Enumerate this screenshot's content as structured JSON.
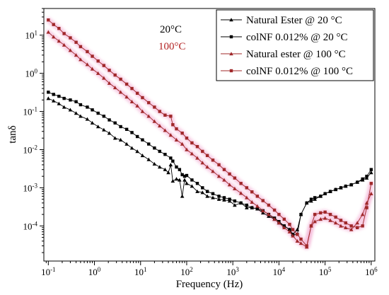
{
  "chart_data": {
    "type": "line",
    "xlabel": "Frequency (Hz)",
    "ylabel": "tanδ",
    "x_scale": "log",
    "y_scale": "log",
    "xlim": [
      0.08,
      1200000
    ],
    "ylim": [
      1.2e-05,
      50
    ],
    "x_ticks": [
      {
        "value": 0.1,
        "base": "10",
        "exp": "-1"
      },
      {
        "value": 1,
        "base": "10",
        "exp": "0"
      },
      {
        "value": 10,
        "base": "10",
        "exp": "1"
      },
      {
        "value": 100,
        "base": "10",
        "exp": "2"
      },
      {
        "value": 1000,
        "base": "10",
        "exp": "3"
      },
      {
        "value": 10000,
        "base": "10",
        "exp": "4"
      },
      {
        "value": 100000,
        "base": "10",
        "exp": "5"
      },
      {
        "value": 1000000,
        "base": "10",
        "exp": "6"
      }
    ],
    "y_ticks": [
      {
        "value": 0.0001,
        "base": "10",
        "exp": "-4"
      },
      {
        "value": 0.001,
        "base": "10",
        "exp": "-3"
      },
      {
        "value": 0.01,
        "base": "10",
        "exp": "-2"
      },
      {
        "value": 0.1,
        "base": "10",
        "exp": "-1"
      },
      {
        "value": 1,
        "base": "10",
        "exp": "0"
      },
      {
        "value": 10,
        "base": "10",
        "exp": "1"
      }
    ],
    "annotations": [
      {
        "text": "20°C",
        "color": "#000000"
      },
      {
        "text": "100°C",
        "color": "#b22222"
      }
    ],
    "legend_position": "top-right",
    "grid": false,
    "series": [
      {
        "name": "Natural Ester @ 20 °C",
        "color": "#000000",
        "marker": "triangle",
        "x": [
          0.1,
          0.13,
          0.17,
          0.22,
          0.3,
          0.4,
          0.5,
          0.7,
          0.9,
          1.2,
          1.6,
          2.1,
          2.8,
          3.7,
          5,
          6.5,
          8.5,
          11,
          15,
          20,
          26,
          34,
          40,
          45,
          50,
          60,
          70,
          80,
          90,
          100,
          130,
          170,
          220,
          280,
          370,
          500,
          650,
          850,
          1100,
          1500,
          2000,
          2600,
          3400,
          4500,
          6000,
          8000,
          10000,
          13000,
          17000,
          20000,
          25000,
          30000,
          40000,
          50000,
          60000,
          80000,
          100000,
          130000,
          170000,
          220000,
          280000,
          370000,
          500000,
          650000,
          800000,
          1000000
        ],
        "y": [
          0.22,
          0.19,
          0.16,
          0.13,
          0.11,
          0.09,
          0.075,
          0.063,
          0.05,
          0.04,
          0.033,
          0.027,
          0.02,
          0.018,
          0.014,
          0.011,
          0.009,
          0.007,
          0.0055,
          0.0042,
          0.0035,
          0.003,
          0.0025,
          0.004,
          0.0015,
          0.0017,
          0.0016,
          0.0006,
          0.0016,
          0.0013,
          0.0011,
          0.0008,
          0.00075,
          0.0006,
          0.00055,
          0.0005,
          0.00048,
          0.00045,
          0.00035,
          0.0004,
          0.0003,
          0.0003,
          0.00028,
          0.00022,
          0.00018,
          0.00015,
          0.00012,
          0.0001,
          8e-05,
          6e-05,
          8e-05,
          0.0002,
          0.0004,
          0.00045,
          0.0005,
          0.0006,
          0.0007,
          0.0008,
          0.0009,
          0.001,
          0.0011,
          0.0012,
          0.0014,
          0.0016,
          0.0018,
          0.0025
        ]
      },
      {
        "name": "colNF 0.012% @ 20 °C",
        "color": "#000000",
        "marker": "square",
        "x": [
          0.1,
          0.13,
          0.17,
          0.22,
          0.3,
          0.4,
          0.5,
          0.7,
          0.9,
          1.2,
          1.6,
          2.1,
          2.8,
          3.7,
          5,
          6.5,
          8.5,
          11,
          15,
          20,
          26,
          34,
          45,
          50,
          60,
          70,
          80,
          90,
          100,
          130,
          170,
          220,
          280,
          370,
          500,
          650,
          850,
          1100,
          1500,
          2000,
          2600,
          3400,
          4500,
          6000,
          8000,
          10000,
          13000,
          17000,
          20000,
          25000,
          30000,
          40000,
          50000,
          60000,
          80000,
          100000,
          130000,
          170000,
          220000,
          280000,
          370000,
          500000,
          650000,
          800000,
          1000000
        ],
        "y": [
          0.32,
          0.28,
          0.25,
          0.22,
          0.2,
          0.18,
          0.15,
          0.13,
          0.11,
          0.09,
          0.075,
          0.06,
          0.05,
          0.04,
          0.034,
          0.028,
          0.022,
          0.018,
          0.014,
          0.011,
          0.009,
          0.0075,
          0.006,
          0.005,
          0.0035,
          0.003,
          0.0022,
          0.002,
          0.0021,
          0.0016,
          0.0013,
          0.001,
          0.0008,
          0.0007,
          0.0006,
          0.00055,
          0.0005,
          0.00045,
          0.0004,
          0.00035,
          0.0003,
          0.00028,
          0.00025,
          0.0002,
          0.00016,
          0.00013,
          0.0001,
          8e-05,
          6e-05,
          6e-05,
          0.0002,
          0.0004,
          0.0005,
          0.00055,
          0.0006,
          0.0007,
          0.0008,
          0.0009,
          0.001,
          0.0011,
          0.0012,
          0.0014,
          0.0017,
          0.002,
          0.003
        ]
      },
      {
        "name": "Natural ester @ 100 °C",
        "color": "#a0282a",
        "marker": "triangle",
        "x": [
          0.1,
          0.13,
          0.17,
          0.22,
          0.3,
          0.4,
          0.5,
          0.7,
          0.9,
          1.2,
          1.6,
          2.1,
          2.8,
          3.7,
          5,
          6.5,
          8.5,
          11,
          15,
          20,
          26,
          34,
          45,
          60,
          80,
          100,
          130,
          170,
          220,
          280,
          370,
          500,
          650,
          850,
          1100,
          1500,
          2000,
          2600,
          3400,
          4500,
          6000,
          8000,
          10000,
          13000,
          17000,
          20000,
          25000,
          30000,
          40000,
          50000,
          60000,
          80000,
          100000,
          130000,
          170000,
          220000,
          280000,
          370000,
          500000,
          650000,
          800000,
          1000000
        ],
        "y": [
          12,
          9,
          7,
          5.5,
          4,
          3,
          2.3,
          1.7,
          1.3,
          1,
          0.75,
          0.55,
          0.42,
          0.32,
          0.24,
          0.18,
          0.14,
          0.1,
          0.075,
          0.055,
          0.042,
          0.032,
          0.024,
          0.018,
          0.014,
          0.01,
          0.0078,
          0.006,
          0.0045,
          0.0035,
          0.0027,
          0.002,
          0.0016,
          0.0012,
          0.00095,
          0.00072,
          0.00055,
          0.00042,
          0.00033,
          0.00025,
          0.0002,
          0.00015,
          0.00012,
          9e-05,
          7e-05,
          5.5e-05,
          4e-05,
          3.5e-05,
          2.8e-05,
          0.0001,
          0.00013,
          0.00015,
          0.00016,
          0.00014,
          0.00012,
          0.0001,
          9e-05,
          8e-05,
          0.00012,
          0.0002,
          0.0004,
          0.0007
        ]
      },
      {
        "name": "colNF 0.012% @ 100 °C",
        "color": "#a0282a",
        "marker": "square",
        "x": [
          0.1,
          0.13,
          0.17,
          0.22,
          0.3,
          0.4,
          0.5,
          0.7,
          0.9,
          1.2,
          1.6,
          2.1,
          2.8,
          3.7,
          5,
          6.5,
          8.5,
          11,
          15,
          20,
          26,
          34,
          45,
          50,
          60,
          80,
          100,
          130,
          170,
          220,
          280,
          370,
          500,
          650,
          850,
          1100,
          1500,
          2000,
          2600,
          3400,
          4500,
          6000,
          8000,
          10000,
          13000,
          17000,
          20000,
          25000,
          30000,
          40000,
          50000,
          60000,
          80000,
          100000,
          130000,
          170000,
          220000,
          280000,
          370000,
          500000,
          650000,
          800000,
          1000000
        ],
        "y": [
          25,
          19,
          15,
          11,
          8.5,
          6.5,
          5,
          3.7,
          2.8,
          2.1,
          1.6,
          1.2,
          0.9,
          0.7,
          0.52,
          0.4,
          0.3,
          0.23,
          0.17,
          0.13,
          0.1,
          0.08,
          0.075,
          0.045,
          0.035,
          0.027,
          0.02,
          0.015,
          0.012,
          0.009,
          0.007,
          0.0053,
          0.004,
          0.003,
          0.0023,
          0.0018,
          0.0013,
          0.001,
          0.00078,
          0.0006,
          0.00046,
          0.00035,
          0.00026,
          0.0002,
          0.00015,
          0.00011,
          8e-05,
          6e-05,
          4.5e-05,
          3e-05,
          0.0001,
          0.0002,
          0.00022,
          0.00023,
          0.0002,
          0.00017,
          0.00014,
          0.00012,
          0.0001,
          9e-05,
          0.0001,
          0.0003,
          0.0013
        ]
      }
    ]
  }
}
